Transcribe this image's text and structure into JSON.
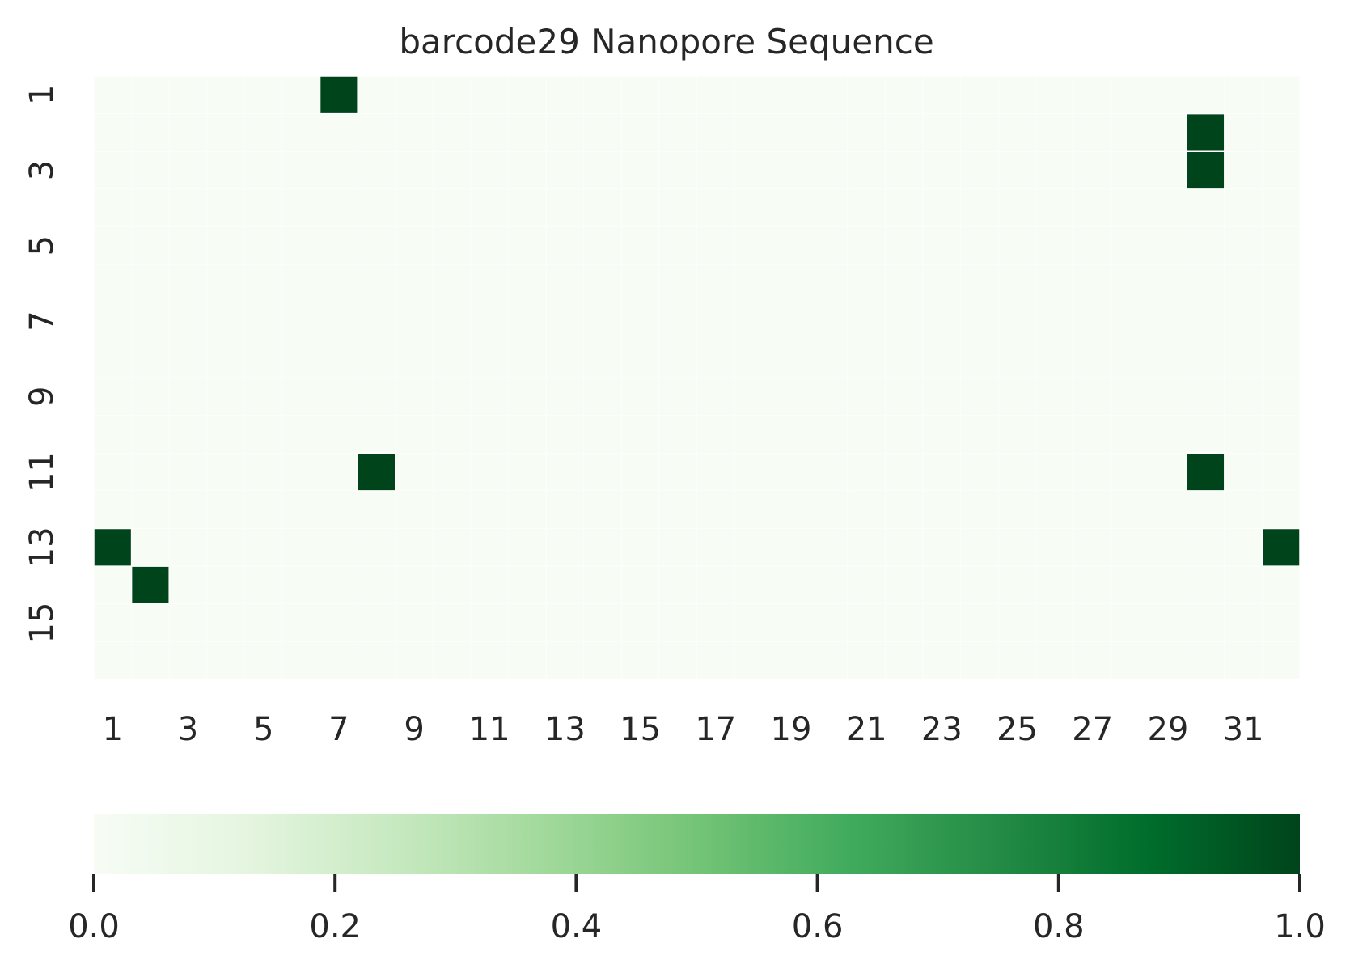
{
  "chart_data": {
    "type": "heatmap",
    "title": "barcode29 Nanopore Sequence",
    "xlabel": "",
    "ylabel": "",
    "rows": 16,
    "cols": 32,
    "row_labels": [
      "1",
      "",
      "3",
      "",
      "5",
      "",
      "7",
      "",
      "9",
      "",
      "11",
      "",
      "13",
      "",
      "15",
      ""
    ],
    "col_labels": [
      "1",
      "",
      "3",
      "",
      "5",
      "",
      "7",
      "",
      "9",
      "",
      "11",
      "",
      "13",
      "",
      "15",
      "",
      "17",
      "",
      "19",
      "",
      "21",
      "",
      "23",
      "",
      "25",
      "",
      "27",
      "",
      "29",
      "",
      "31",
      ""
    ],
    "cells": [
      {
        "row": 1,
        "col": 7,
        "value": 1.0
      },
      {
        "row": 2,
        "col": 30,
        "value": 1.0
      },
      {
        "row": 3,
        "col": 30,
        "value": 1.0
      },
      {
        "row": 11,
        "col": 8,
        "value": 1.0
      },
      {
        "row": 11,
        "col": 30,
        "value": 1.0
      },
      {
        "row": 13,
        "col": 1,
        "value": 1.0
      },
      {
        "row": 13,
        "col": 32,
        "value": 1.0
      },
      {
        "row": 14,
        "col": 2,
        "value": 1.0
      }
    ],
    "default_value": 0.0,
    "colorbar": {
      "orientation": "horizontal",
      "min": 0.0,
      "max": 1.0,
      "ticks": [
        "0.0",
        "0.2",
        "0.4",
        "0.6",
        "0.8",
        "1.0"
      ],
      "colormap": "Greens",
      "colors": [
        "#f7fcf5",
        "#e5f5e0",
        "#c7e9c0",
        "#a1d99b",
        "#74c476",
        "#41ab5d",
        "#238b45",
        "#006d2c",
        "#00441b"
      ]
    },
    "grid": true
  }
}
